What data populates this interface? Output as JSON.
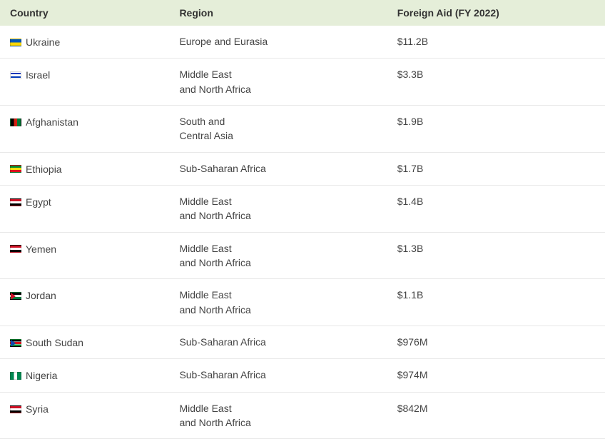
{
  "table": {
    "type": "table",
    "header_background": "#e5eed9",
    "row_border_color": "#e8e8e8",
    "text_color": "#444444",
    "header_text_color": "#333333",
    "font_size_pt": 10,
    "columns": [
      {
        "label": "Country",
        "width_pct": 28,
        "align": "left"
      },
      {
        "label": "Region",
        "width_pct": 36,
        "align": "left"
      },
      {
        "label": "Foreign Aid (FY 2022)",
        "width_pct": 36,
        "align": "left"
      }
    ],
    "rows": [
      {
        "flag": "ukraine",
        "country": "Ukraine",
        "region": "Europe and Eurasia",
        "aid": "$11.2B"
      },
      {
        "flag": "israel",
        "country": "Israel",
        "region": "Middle East\nand North Africa",
        "aid": "$3.3B"
      },
      {
        "flag": "afghanistan",
        "country": "Afghanistan",
        "region": "South and\nCentral Asia",
        "aid": "$1.9B"
      },
      {
        "flag": "ethiopia",
        "country": "Ethiopia",
        "region": "Sub-Saharan Africa",
        "aid": "$1.7B"
      },
      {
        "flag": "egypt",
        "country": "Egypt",
        "region": "Middle East\nand North Africa",
        "aid": "$1.4B"
      },
      {
        "flag": "yemen",
        "country": "Yemen",
        "region": "Middle East\nand North Africa",
        "aid": "$1.3B"
      },
      {
        "flag": "jordan",
        "country": "Jordan",
        "region": "Middle East\nand North Africa",
        "aid": "$1.1B"
      },
      {
        "flag": "southsudan",
        "country": "South Sudan",
        "region": "Sub-Saharan Africa",
        "aid": "$976M"
      },
      {
        "flag": "nigeria",
        "country": "Nigeria",
        "region": "Sub-Saharan Africa",
        "aid": "$974M"
      },
      {
        "flag": "syria",
        "country": "Syria",
        "region": "Middle East\nand North Africa",
        "aid": "$842M"
      }
    ]
  }
}
